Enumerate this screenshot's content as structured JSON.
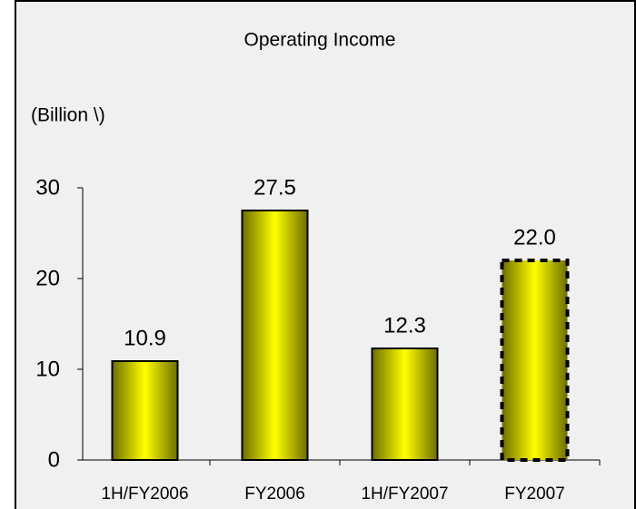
{
  "chart_data": {
    "type": "bar",
    "title": "Operating Income",
    "y_label": "(Billion \\)",
    "categories": [
      "1H/FY2006",
      "FY2006",
      "1H/FY2007",
      "FY2007"
    ],
    "values": [
      10.9,
      27.5,
      12.3,
      22.0
    ],
    "value_labels": [
      "10.9",
      "27.5",
      "12.3",
      "22.0"
    ],
    "dashed": [
      false,
      false,
      false,
      true
    ],
    "color": "#ffff00",
    "ylim": [
      0,
      30
    ],
    "yticks": [
      0,
      10,
      20,
      30
    ],
    "grid": false
  }
}
